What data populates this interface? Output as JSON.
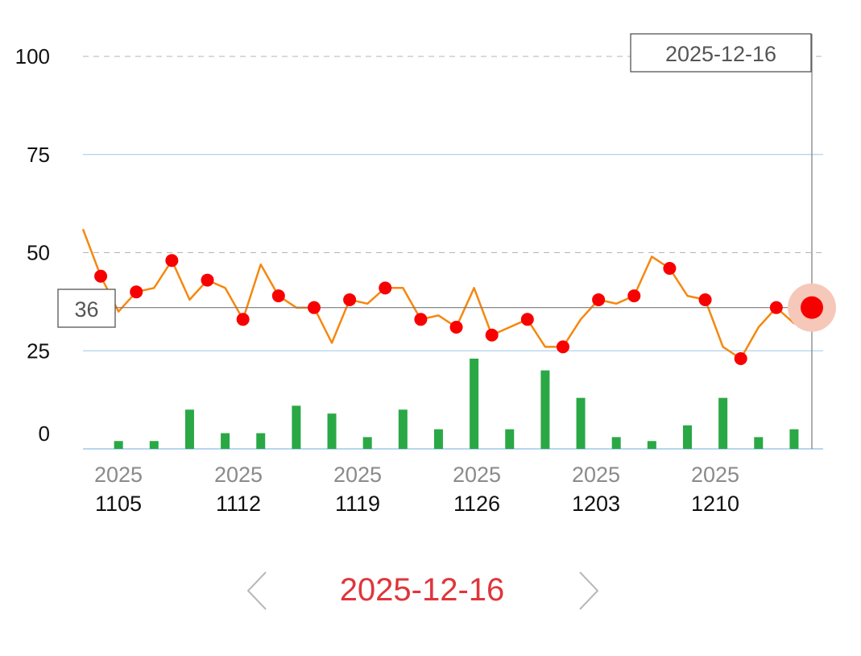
{
  "chart_data": {
    "type": "line",
    "y_axis": {
      "ticks": [
        0,
        25,
        50,
        75,
        100
      ],
      "ylim": [
        0,
        100
      ]
    },
    "x_axis": {
      "tick_labels": [
        {
          "year": "2025",
          "day": "1105"
        },
        {
          "year": "2025",
          "day": "1112"
        },
        {
          "year": "2025",
          "day": "1119"
        },
        {
          "year": "2025",
          "day": "1126"
        },
        {
          "year": "2025",
          "day": "1203"
        },
        {
          "year": "2025",
          "day": "1210"
        }
      ]
    },
    "dates": [
      "2025-11-05",
      "2025-11-06",
      "2025-11-07",
      "2025-11-08",
      "2025-11-09",
      "2025-11-10",
      "2025-11-11",
      "2025-11-12",
      "2025-11-13",
      "2025-11-14",
      "2025-11-15",
      "2025-11-16",
      "2025-11-17",
      "2025-11-18",
      "2025-11-19",
      "2025-11-20",
      "2025-11-21",
      "2025-11-22",
      "2025-11-23",
      "2025-11-24",
      "2025-11-25",
      "2025-11-26",
      "2025-11-27",
      "2025-11-28",
      "2025-11-29",
      "2025-11-30",
      "2025-12-01",
      "2025-12-02",
      "2025-12-03",
      "2025-12-04",
      "2025-12-05",
      "2025-12-06",
      "2025-12-07",
      "2025-12-08",
      "2025-12-09",
      "2025-12-10",
      "2025-12-11",
      "2025-12-12",
      "2025-12-13",
      "2025-12-14",
      "2025-12-15",
      "2025-12-16"
    ],
    "line_values": [
      56,
      44,
      35,
      40,
      41,
      48,
      38,
      43,
      41,
      33,
      47,
      39,
      36,
      36,
      27,
      38,
      37,
      41,
      41,
      33,
      34,
      31,
      41,
      29,
      31,
      33,
      26,
      26,
      33,
      38,
      37,
      39,
      49,
      46,
      39,
      38,
      26,
      23,
      31,
      36,
      32,
      36
    ],
    "bar_values": [
      0,
      0,
      2,
      0,
      2,
      0,
      10,
      0,
      4,
      0,
      4,
      0,
      11,
      0,
      9,
      0,
      3,
      0,
      10,
      0,
      5,
      0,
      23,
      0,
      5,
      0,
      20,
      0,
      13,
      0,
      3,
      0,
      2,
      0,
      6,
      0,
      13,
      0,
      3,
      0,
      5,
      0
    ],
    "line_color": "#f5880f",
    "point_color": "#f80000",
    "bar_color": "#2aa845",
    "crosshair": {
      "date_label": "2025-12-16",
      "value_label": "36"
    },
    "grid": true
  },
  "nav": {
    "date": "2025-12-16",
    "prev_icon": "chevron-left-icon",
    "next_icon": "chevron-right-icon"
  }
}
